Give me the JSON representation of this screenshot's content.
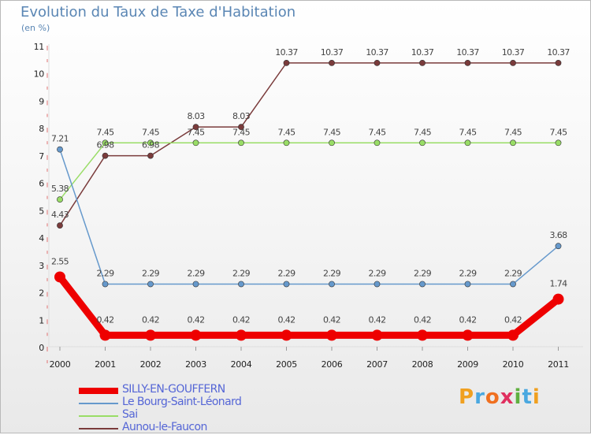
{
  "chart_data": {
    "type": "line",
    "title": "Evolution du Taux de Taxe d'Habitation",
    "subtitle": "(en %)",
    "x": [
      "2000",
      "2001",
      "2002",
      "2003",
      "2004",
      "2005",
      "2006",
      "2007",
      "2008",
      "2009",
      "2010",
      "2011"
    ],
    "y_ticks": [
      "0",
      "1",
      "2",
      "3",
      "4",
      "5",
      "6",
      "7",
      "8",
      "9",
      "10",
      "11"
    ],
    "ylim": [
      0,
      11
    ],
    "series": [
      {
        "name": "SILLY-EN-GOUFFERN",
        "color": "#ee0000",
        "values": [
          2.55,
          0.42,
          0.42,
          0.42,
          0.42,
          0.42,
          0.42,
          0.42,
          0.42,
          0.42,
          0.42,
          1.74
        ],
        "labels": [
          "2.55",
          "0.42",
          "0.42",
          "0.42",
          "0.42",
          "0.42",
          "0.42",
          "0.42",
          "0.42",
          "0.42",
          "0.42",
          "1.74"
        ]
      },
      {
        "name": "Le Bourg-Saint-Léonard",
        "color": "#6699cc",
        "values": [
          7.21,
          2.29,
          2.29,
          2.29,
          2.29,
          2.29,
          2.29,
          2.29,
          2.29,
          2.29,
          2.29,
          3.68
        ],
        "labels": [
          "7.21",
          "2.29",
          "2.29",
          "2.29",
          "2.29",
          "2.29",
          "2.29",
          "2.29",
          "2.29",
          "2.29",
          "2.29",
          "3.68"
        ]
      },
      {
        "name": "Sai",
        "color": "#99dd66",
        "values": [
          5.38,
          7.45,
          7.45,
          7.45,
          7.45,
          7.45,
          7.45,
          7.45,
          7.45,
          7.45,
          7.45,
          7.45
        ],
        "labels": [
          "5.38",
          "7.45",
          "7.45",
          "7.45",
          "7.45",
          "7.45",
          "7.45",
          "7.45",
          "7.45",
          "7.45",
          "7.45",
          "7.45"
        ]
      },
      {
        "name": "Aunou-le-Faucon",
        "color": "#7a3b3b",
        "values": [
          4.43,
          6.98,
          6.98,
          8.03,
          8.03,
          10.37,
          10.37,
          10.37,
          10.37,
          10.37,
          10.37,
          10.37
        ],
        "labels": [
          "4.43",
          "6.98",
          "6.98",
          "8.03",
          "8.03",
          "10.37",
          "10.37",
          "10.37",
          "10.37",
          "10.37",
          "10.37",
          "10.37"
        ]
      }
    ]
  },
  "logo": {
    "text": [
      "P",
      "r",
      "o",
      "x",
      "i",
      "t",
      "i"
    ],
    "colors": [
      "#f0a020",
      "#4aa8e0",
      "#f07020",
      "#e03060",
      "#60b040",
      "#4aa8e0",
      "#f0a020"
    ]
  }
}
